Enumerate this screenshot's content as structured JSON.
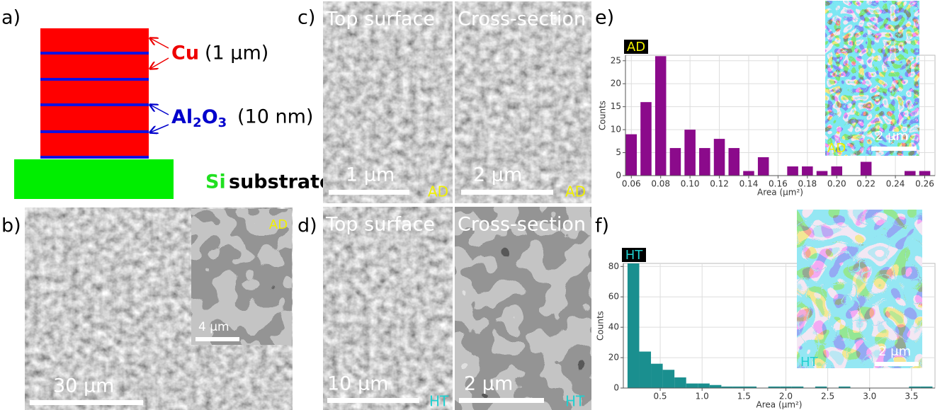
{
  "panels": {
    "a": {
      "label": "a)",
      "cu": "Cu",
      "cu_thickness": "(1 μm)",
      "al": "Al",
      "al_sub": "2",
      "o": "O",
      "o_sub": "3",
      "oxide_thickness": "(10 nm)",
      "si": "Si",
      "substrate": "substrate"
    },
    "b": {
      "label": "b)",
      "scale_bar": "30 μm",
      "inset_scale_bar": "4 μm",
      "inset_tag": "AD"
    },
    "c": {
      "label": "c)",
      "top_title": "Top surface",
      "cross_title": "Cross-section",
      "top_scale_bar": "1 μm",
      "cross_scale_bar": "2 μm",
      "top_tag": "AD",
      "cross_tag": "AD"
    },
    "d": {
      "label": "d)",
      "top_title": "Top surface",
      "cross_title": "Cross-section",
      "top_scale_bar": "10 μm",
      "cross_scale_bar": "2 μm",
      "top_tag": "HT",
      "cross_tag": "HT"
    },
    "e": {
      "label": "e)",
      "inset_scale_bar": "2 μm",
      "inset_tag": "AD"
    },
    "f": {
      "label": "f)",
      "inset_scale_bar": "2 μm",
      "inset_tag": "HT"
    }
  },
  "chart_data": [
    {
      "type": "bar",
      "tag": "AD",
      "tag_color": "#f0f000",
      "color": "#8b0a8b",
      "xlabel": "Area (μm²)",
      "ylabel": "Counts",
      "x": [
        0.06,
        0.07,
        0.08,
        0.09,
        0.1,
        0.11,
        0.12,
        0.13,
        0.14,
        0.15,
        0.16,
        0.17,
        0.18,
        0.19,
        0.2,
        0.21,
        0.22,
        0.23,
        0.24,
        0.25,
        0.26
      ],
      "values": [
        9,
        16,
        26,
        6,
        10,
        6,
        8,
        6,
        1,
        4,
        0,
        2,
        2,
        1,
        2,
        0,
        3,
        0,
        0,
        1,
        1
      ],
      "xlim": [
        0.056,
        0.267
      ],
      "xticks": [
        0.06,
        0.08,
        {
          "value": 0.1,
          "label": "0.10"
        },
        0.12,
        0.14,
        0.16,
        0.18,
        {
          "value": 0.2,
          "label": "0.20"
        },
        0.22,
        0.24,
        0.26
      ],
      "ylim": [
        0,
        26.2
      ],
      "yticks": [
        0,
        5,
        10,
        15,
        20,
        25
      ],
      "grid": true
    },
    {
      "type": "histogram",
      "tag": "HT",
      "tag_color": "#20d0d0",
      "color": "#1a8f8f",
      "xlabel": "Area (μm²)",
      "ylabel": "Counts",
      "bins": [
        0.11,
        0.25,
        0.39,
        0.53,
        0.67,
        0.81,
        0.95,
        1.09,
        1.23,
        1.37,
        1.51,
        1.65,
        1.79,
        1.93,
        2.07,
        2.21,
        2.35,
        2.49,
        2.63,
        2.77,
        2.91,
        3.05,
        3.19,
        3.33,
        3.47,
        3.61,
        3.75
      ],
      "values": [
        82,
        24,
        16,
        12,
        7,
        3,
        3,
        2,
        1,
        1,
        1,
        0,
        1,
        1,
        1,
        0,
        1,
        0,
        1,
        0,
        0,
        0,
        0,
        0,
        1,
        1
      ],
      "xlim": [
        0.06,
        3.78
      ],
      "xticks": [
        0.5,
        {
          "value": 1,
          "label": "1.0"
        },
        1.5,
        {
          "value": 2,
          "label": "2.0"
        },
        2.5,
        {
          "value": 3,
          "label": "3.0"
        },
        3.5
      ],
      "ylim": [
        0,
        82
      ],
      "yticks": [
        0,
        20,
        40,
        60,
        80
      ],
      "grid": true
    }
  ]
}
